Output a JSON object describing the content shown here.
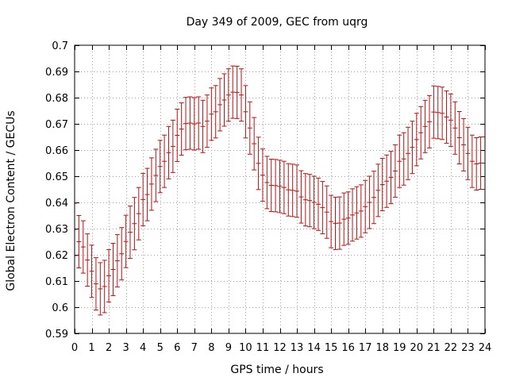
{
  "chart_data": {
    "type": "scatter",
    "style": "errorbars",
    "title": "Day 349 of 2009, GEC from uqrg",
    "xlabel": "GPS time / hours",
    "ylabel": "Global Electron Content / GECUs",
    "xlim": [
      0,
      24
    ],
    "ylim": [
      0.59,
      0.7
    ],
    "grid": true,
    "xticks": [
      0,
      1,
      2,
      3,
      4,
      5,
      6,
      7,
      8,
      9,
      10,
      11,
      12,
      13,
      14,
      15,
      16,
      17,
      18,
      19,
      20,
      21,
      22,
      23,
      24
    ],
    "yticks": [
      0.59,
      0.6,
      0.61,
      0.62,
      0.63,
      0.64,
      0.65,
      0.66,
      0.67,
      0.68,
      0.69,
      0.7
    ],
    "xtick_labels": [
      "0",
      "1",
      "2",
      "3",
      "4",
      "5",
      "6",
      "7",
      "8",
      "9",
      "10",
      "11",
      "12",
      "13",
      "14",
      "15",
      "16",
      "17",
      "18",
      "19",
      "20",
      "21",
      "22",
      "23",
      "24"
    ],
    "ytick_labels": [
      "0.59",
      "0.6",
      "0.61",
      "0.62",
      "0.63",
      "0.64",
      "0.65",
      "0.66",
      "0.67",
      "0.68",
      "0.69",
      "0.7"
    ],
    "series_color": "#bb1111",
    "series": [
      {
        "name": "GEC",
        "x": [
          0,
          0.25,
          0.5,
          0.75,
          1,
          1.25,
          1.5,
          1.75,
          2,
          2.25,
          2.5,
          2.75,
          3,
          3.25,
          3.5,
          3.75,
          4,
          4.25,
          4.5,
          4.75,
          5,
          5.25,
          5.5,
          5.75,
          6,
          6.25,
          6.5,
          6.75,
          7,
          7.25,
          7.5,
          7.75,
          8,
          8.25,
          8.5,
          8.75,
          9,
          9.25,
          9.5,
          9.75,
          10,
          10.25,
          10.5,
          10.75,
          11,
          11.25,
          11.5,
          11.75,
          12,
          12.25,
          12.5,
          12.75,
          13,
          13.25,
          13.5,
          13.75,
          14,
          14.25,
          14.5,
          14.75,
          15,
          15.25,
          15.5,
          15.75,
          16,
          16.25,
          16.5,
          16.75,
          17,
          17.25,
          17.5,
          17.75,
          18,
          18.25,
          18.5,
          18.75,
          19,
          19.25,
          19.5,
          19.75,
          20,
          20.25,
          20.5,
          20.75,
          21,
          21.25,
          21.5,
          21.75,
          22,
          22.25,
          22.5,
          22.75,
          23,
          23.25,
          23.5,
          23.75,
          24
        ],
        "y": [
          0.6297,
          0.625,
          0.623,
          0.618,
          0.6137,
          0.6089,
          0.607,
          0.6079,
          0.612,
          0.6144,
          0.6177,
          0.6204,
          0.6251,
          0.6286,
          0.6319,
          0.6357,
          0.6411,
          0.643,
          0.647,
          0.6503,
          0.6537,
          0.6557,
          0.659,
          0.6614,
          0.6656,
          0.668,
          0.6701,
          0.6703,
          0.67,
          0.6703,
          0.669,
          0.671,
          0.6737,
          0.6746,
          0.6773,
          0.6791,
          0.681,
          0.6821,
          0.682,
          0.681,
          0.6746,
          0.6684,
          0.6624,
          0.6549,
          0.6504,
          0.6476,
          0.6465,
          0.6464,
          0.6461,
          0.6457,
          0.6448,
          0.6446,
          0.6443,
          0.6421,
          0.641,
          0.6407,
          0.64,
          0.6393,
          0.638,
          0.6363,
          0.6327,
          0.632,
          0.6321,
          0.6336,
          0.634,
          0.6352,
          0.636,
          0.6367,
          0.6384,
          0.64,
          0.6419,
          0.6446,
          0.6468,
          0.6481,
          0.6495,
          0.652,
          0.6557,
          0.6566,
          0.6587,
          0.661,
          0.664,
          0.6666,
          0.669,
          0.6708,
          0.6745,
          0.6743,
          0.674,
          0.6726,
          0.6714,
          0.6684,
          0.6647,
          0.662,
          0.6587,
          0.6557,
          0.6547,
          0.655,
          0.655
        ],
        "err": [
          0.01,
          0.01,
          0.01,
          0.01,
          0.01,
          0.01,
          0.01,
          0.01,
          0.01,
          0.01,
          0.01,
          0.01,
          0.01,
          0.01,
          0.01,
          0.01,
          0.01,
          0.01,
          0.01,
          0.01,
          0.01,
          0.01,
          0.01,
          0.01,
          0.01,
          0.01,
          0.01,
          0.01,
          0.01,
          0.01,
          0.01,
          0.01,
          0.01,
          0.01,
          0.01,
          0.01,
          0.01,
          0.01,
          0.01,
          0.01,
          0.01,
          0.01,
          0.01,
          0.01,
          0.01,
          0.01,
          0.01,
          0.01,
          0.01,
          0.01,
          0.01,
          0.01,
          0.01,
          0.01,
          0.01,
          0.01,
          0.01,
          0.01,
          0.01,
          0.01,
          0.01,
          0.01,
          0.01,
          0.01,
          0.01,
          0.01,
          0.01,
          0.01,
          0.01,
          0.01,
          0.01,
          0.01,
          0.01,
          0.01,
          0.01,
          0.01,
          0.01,
          0.01,
          0.01,
          0.01,
          0.01,
          0.01,
          0.01,
          0.01,
          0.01,
          0.01,
          0.01,
          0.01,
          0.01,
          0.01,
          0.01,
          0.01,
          0.01,
          0.01,
          0.01,
          0.01,
          0.01
        ]
      }
    ]
  }
}
